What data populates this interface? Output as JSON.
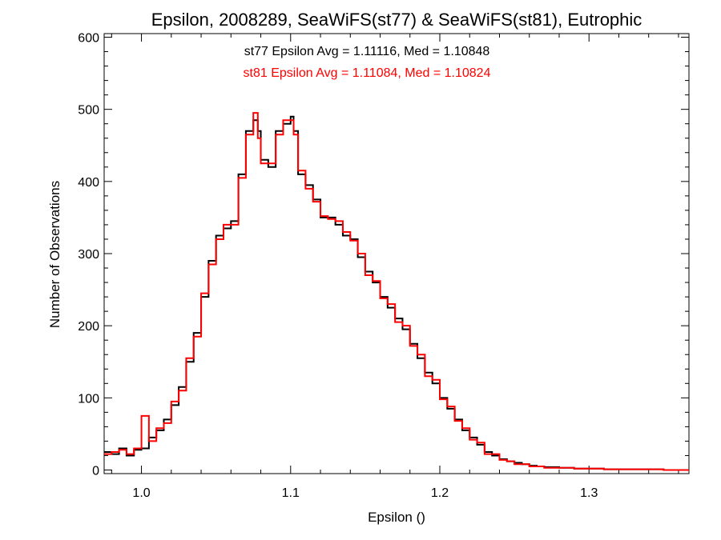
{
  "chart_data": {
    "type": "line",
    "title": "Epsilon, 2008289, SeaWiFS(st77) & SeaWiFS(st81), Eutrophic",
    "xlabel": "Epsilon ()",
    "ylabel": "Number of Observations",
    "xlim": [
      0.975,
      1.367
    ],
    "ylim": [
      -5,
      605
    ],
    "x_ticks": [
      1.0,
      1.1,
      1.2,
      1.3
    ],
    "x_tick_labels": [
      "1.0",
      "1.1",
      "1.2",
      "1.3"
    ],
    "y_ticks": [
      0,
      100,
      200,
      300,
      400,
      500,
      600
    ],
    "y_tick_labels": [
      "0",
      "100",
      "200",
      "300",
      "400",
      "500",
      "600"
    ],
    "legend_position": "top-center",
    "grid": false,
    "annotations": [
      {
        "text": "st77 Epsilon Avg = 1.11116, Med = 1.10848",
        "color": "#000000"
      },
      {
        "text": "st81 Epsilon Avg = 1.11084, Med = 1.10824",
        "color": "#ff0000"
      }
    ],
    "series": [
      {
        "color": "#000000",
        "x": [
          0.975,
          0.98,
          0.985,
          0.99,
          0.995,
          1.0,
          1.005,
          1.01,
          1.015,
          1.02,
          1.025,
          1.03,
          1.035,
          1.04,
          1.045,
          1.05,
          1.055,
          1.06,
          1.065,
          1.07,
          1.075,
          1.078,
          1.08,
          1.085,
          1.09,
          1.095,
          1.1,
          1.102,
          1.105,
          1.11,
          1.115,
          1.12,
          1.125,
          1.13,
          1.135,
          1.14,
          1.145,
          1.15,
          1.155,
          1.16,
          1.165,
          1.17,
          1.175,
          1.18,
          1.185,
          1.19,
          1.195,
          1.2,
          1.205,
          1.21,
          1.215,
          1.22,
          1.225,
          1.23,
          1.235,
          1.24,
          1.245,
          1.25,
          1.255,
          1.26,
          1.265,
          1.27,
          1.28,
          1.29,
          1.3,
          1.31,
          1.32,
          1.33,
          1.34,
          1.35,
          1.36,
          1.367
        ],
        "y": [
          25,
          22,
          30,
          20,
          28,
          30,
          45,
          55,
          70,
          90,
          115,
          150,
          190,
          240,
          290,
          325,
          335,
          345,
          410,
          470,
          485,
          470,
          430,
          420,
          470,
          480,
          490,
          470,
          410,
          395,
          375,
          350,
          350,
          340,
          325,
          320,
          295,
          275,
          260,
          240,
          225,
          210,
          195,
          175,
          155,
          135,
          120,
          100,
          85,
          70,
          55,
          45,
          35,
          25,
          20,
          15,
          12,
          10,
          8,
          6,
          5,
          4,
          3,
          2,
          2,
          1,
          1,
          1,
          1,
          0,
          0,
          0
        ]
      },
      {
        "color": "#ff0000",
        "x": [
          0.975,
          0.98,
          0.985,
          0.99,
          0.995,
          1.0,
          1.005,
          1.01,
          1.015,
          1.02,
          1.025,
          1.03,
          1.035,
          1.04,
          1.045,
          1.05,
          1.055,
          1.06,
          1.065,
          1.07,
          1.075,
          1.078,
          1.08,
          1.085,
          1.09,
          1.095,
          1.1,
          1.102,
          1.105,
          1.11,
          1.115,
          1.12,
          1.125,
          1.13,
          1.135,
          1.14,
          1.145,
          1.15,
          1.155,
          1.16,
          1.165,
          1.17,
          1.175,
          1.18,
          1.185,
          1.19,
          1.195,
          1.2,
          1.205,
          1.21,
          1.215,
          1.22,
          1.225,
          1.23,
          1.235,
          1.24,
          1.245,
          1.25,
          1.255,
          1.26,
          1.265,
          1.27,
          1.28,
          1.29,
          1.3,
          1.31,
          1.32,
          1.33,
          1.34,
          1.35,
          1.36,
          1.367
        ],
        "y": [
          22,
          25,
          28,
          22,
          30,
          75,
          40,
          58,
          65,
          95,
          110,
          155,
          185,
          245,
          285,
          320,
          340,
          340,
          405,
          465,
          495,
          460,
          425,
          425,
          465,
          485,
          485,
          465,
          415,
          390,
          372,
          352,
          348,
          345,
          330,
          318,
          300,
          270,
          262,
          238,
          230,
          205,
          200,
          172,
          160,
          130,
          125,
          98,
          88,
          68,
          58,
          42,
          38,
          22,
          22,
          14,
          12,
          8,
          8,
          5,
          5,
          3,
          3,
          2,
          2,
          1,
          1,
          1,
          1,
          0,
          0,
          0
        ]
      }
    ]
  }
}
